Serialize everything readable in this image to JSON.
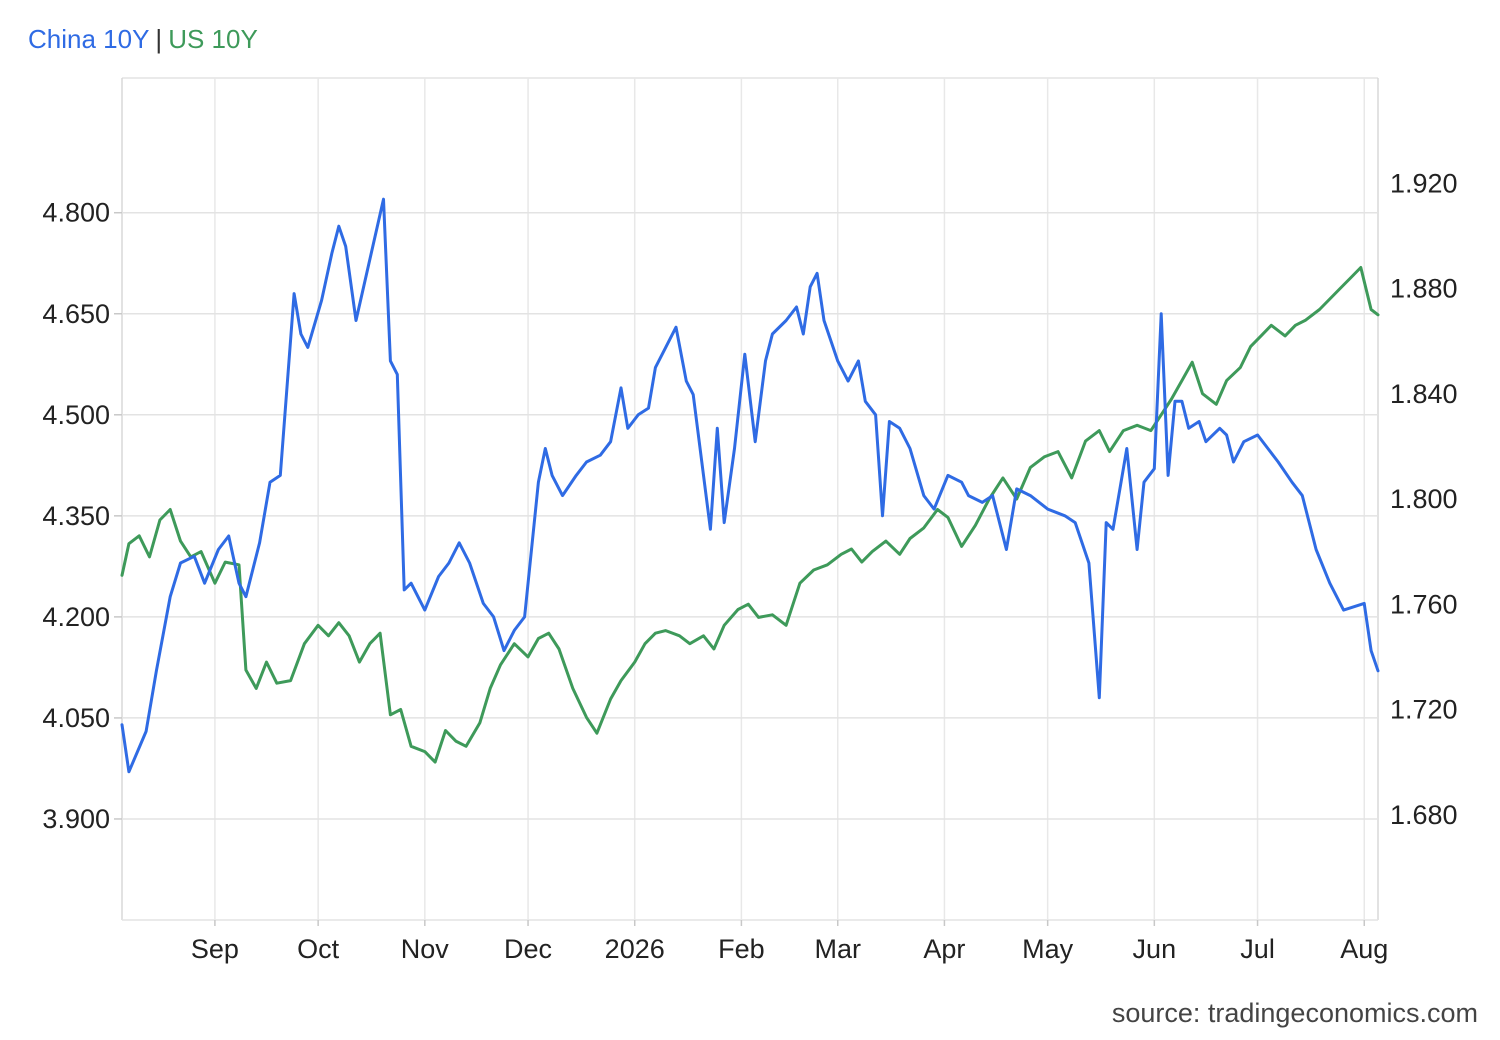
{
  "chart_data": {
    "type": "line",
    "legend": {
      "separator": "|",
      "placement": "top-left"
    },
    "source": "source: tradingeconomics.com",
    "grid": true,
    "x_ticks": [
      "Sep",
      "Oct",
      "Nov",
      "Dec",
      "2026",
      "Feb",
      "Mar",
      "Apr",
      "May",
      "Jun",
      "Jul",
      "Aug"
    ],
    "x_tick_dates": [
      "2025-09-01",
      "2025-10-01",
      "2025-11-01",
      "2025-12-01",
      "2026-01-01",
      "2026-02-01",
      "2026-03-01",
      "2026-04-01",
      "2026-05-01",
      "2026-06-01",
      "2026-07-01",
      "2026-08-01"
    ],
    "xlim": [
      "2025-08-05",
      "2026-08-05"
    ],
    "y_left": {
      "ticks": [
        "4.800",
        "4.650",
        "4.500",
        "4.350",
        "4.200",
        "4.050",
        "3.900"
      ],
      "ylim": [
        3.75,
        5.0
      ]
    },
    "y_right": {
      "ticks": [
        "1.920",
        "1.880",
        "1.840",
        "1.800",
        "1.760",
        "1.720",
        "1.680"
      ],
      "ylim": [
        1.64,
        1.96
      ]
    },
    "series": [
      {
        "name": "China 10Y",
        "color": "#2f6be4",
        "axis": "left",
        "points": [
          [
            "2025-08-05",
            4.04
          ],
          [
            "2025-08-07",
            3.97
          ],
          [
            "2025-08-12",
            4.03
          ],
          [
            "2025-08-15",
            4.12
          ],
          [
            "2025-08-19",
            4.23
          ],
          [
            "2025-08-22",
            4.28
          ],
          [
            "2025-08-26",
            4.29
          ],
          [
            "2025-08-29",
            4.25
          ],
          [
            "2025-09-02",
            4.3
          ],
          [
            "2025-09-05",
            4.32
          ],
          [
            "2025-09-08",
            4.25
          ],
          [
            "2025-09-10",
            4.23
          ],
          [
            "2025-09-14",
            4.31
          ],
          [
            "2025-09-17",
            4.4
          ],
          [
            "2025-09-20",
            4.41
          ],
          [
            "2025-09-24",
            4.68
          ],
          [
            "2025-09-26",
            4.62
          ],
          [
            "2025-09-28",
            4.6
          ],
          [
            "2025-10-02",
            4.67
          ],
          [
            "2025-10-05",
            4.74
          ],
          [
            "2025-10-07",
            4.78
          ],
          [
            "2025-10-09",
            4.75
          ],
          [
            "2025-10-12",
            4.64
          ],
          [
            "2025-10-20",
            4.82
          ],
          [
            "2025-10-22",
            4.58
          ],
          [
            "2025-10-24",
            4.56
          ],
          [
            "2025-10-26",
            4.24
          ],
          [
            "2025-10-28",
            4.25
          ],
          [
            "2025-11-01",
            4.21
          ],
          [
            "2025-11-05",
            4.26
          ],
          [
            "2025-11-08",
            4.28
          ],
          [
            "2025-11-11",
            4.31
          ],
          [
            "2025-11-14",
            4.28
          ],
          [
            "2025-11-18",
            4.22
          ],
          [
            "2025-11-21",
            4.2
          ],
          [
            "2025-11-24",
            4.15
          ],
          [
            "2025-11-27",
            4.18
          ],
          [
            "2025-11-30",
            4.2
          ],
          [
            "2025-12-04",
            4.4
          ],
          [
            "2025-12-06",
            4.45
          ],
          [
            "2025-12-08",
            4.41
          ],
          [
            "2025-12-11",
            4.38
          ],
          [
            "2025-12-15",
            4.41
          ],
          [
            "2025-12-18",
            4.43
          ],
          [
            "2025-12-22",
            4.44
          ],
          [
            "2025-12-25",
            4.46
          ],
          [
            "2025-12-28",
            4.54
          ],
          [
            "2025-12-30",
            4.48
          ],
          [
            "2026-01-02",
            4.5
          ],
          [
            "2026-01-05",
            4.51
          ],
          [
            "2026-01-07",
            4.57
          ],
          [
            "2026-01-10",
            4.6
          ],
          [
            "2026-01-13",
            4.63
          ],
          [
            "2026-01-16",
            4.55
          ],
          [
            "2026-01-18",
            4.53
          ],
          [
            "2026-01-23",
            4.33
          ],
          [
            "2026-01-25",
            4.48
          ],
          [
            "2026-01-27",
            4.34
          ],
          [
            "2026-01-30",
            4.45
          ],
          [
            "2026-02-02",
            4.59
          ],
          [
            "2026-02-05",
            4.46
          ],
          [
            "2026-02-08",
            4.58
          ],
          [
            "2026-02-10",
            4.62
          ],
          [
            "2026-02-14",
            4.64
          ],
          [
            "2026-02-17",
            4.66
          ],
          [
            "2026-02-19",
            4.62
          ],
          [
            "2026-02-21",
            4.69
          ],
          [
            "2026-02-23",
            4.71
          ],
          [
            "2026-02-25",
            4.64
          ],
          [
            "2026-03-01",
            4.58
          ],
          [
            "2026-03-04",
            4.55
          ],
          [
            "2026-03-07",
            4.58
          ],
          [
            "2026-03-09",
            4.52
          ],
          [
            "2026-03-12",
            4.5
          ],
          [
            "2026-03-14",
            4.35
          ],
          [
            "2026-03-16",
            4.49
          ],
          [
            "2026-03-19",
            4.48
          ],
          [
            "2026-03-22",
            4.45
          ],
          [
            "2026-03-26",
            4.38
          ],
          [
            "2026-03-29",
            4.36
          ],
          [
            "2026-04-02",
            4.41
          ],
          [
            "2026-04-06",
            4.4
          ],
          [
            "2026-04-08",
            4.38
          ],
          [
            "2026-04-12",
            4.37
          ],
          [
            "2026-04-15",
            4.38
          ],
          [
            "2026-04-19",
            4.3
          ],
          [
            "2026-04-22",
            4.39
          ],
          [
            "2026-04-26",
            4.38
          ],
          [
            "2026-05-01",
            4.36
          ],
          [
            "2026-05-06",
            4.35
          ],
          [
            "2026-05-09",
            4.34
          ],
          [
            "2026-05-13",
            4.28
          ],
          [
            "2026-05-16",
            4.08
          ],
          [
            "2026-05-18",
            4.34
          ],
          [
            "2026-05-20",
            4.33
          ],
          [
            "2026-05-24",
            4.45
          ],
          [
            "2026-05-27",
            4.3
          ],
          [
            "2026-05-29",
            4.4
          ],
          [
            "2026-06-01",
            4.42
          ],
          [
            "2026-06-03",
            4.65
          ],
          [
            "2026-06-05",
            4.41
          ],
          [
            "2026-06-07",
            4.52
          ],
          [
            "2026-06-09",
            4.52
          ],
          [
            "2026-06-11",
            4.48
          ],
          [
            "2026-06-14",
            4.49
          ],
          [
            "2026-06-16",
            4.46
          ],
          [
            "2026-06-20",
            4.48
          ],
          [
            "2026-06-22",
            4.47
          ],
          [
            "2026-06-24",
            4.43
          ],
          [
            "2026-06-27",
            4.46
          ],
          [
            "2026-07-01",
            4.47
          ],
          [
            "2026-07-04",
            4.45
          ],
          [
            "2026-07-07",
            4.43
          ],
          [
            "2026-07-11",
            4.4
          ],
          [
            "2026-07-14",
            4.38
          ],
          [
            "2026-07-18",
            4.3
          ],
          [
            "2026-07-22",
            4.25
          ],
          [
            "2026-07-26",
            4.21
          ],
          [
            "2026-08-01",
            4.22
          ],
          [
            "2026-08-03",
            4.15
          ],
          [
            "2026-08-05",
            4.12
          ]
        ]
      },
      {
        "name": "US 10Y",
        "color": "#3e9a5a",
        "axis": "right",
        "points": [
          [
            "2025-08-05",
            1.771
          ],
          [
            "2025-08-07",
            1.783
          ],
          [
            "2025-08-10",
            1.786
          ],
          [
            "2025-08-13",
            1.778
          ],
          [
            "2025-08-16",
            1.792
          ],
          [
            "2025-08-19",
            1.796
          ],
          [
            "2025-08-22",
            1.784
          ],
          [
            "2025-08-25",
            1.778
          ],
          [
            "2025-08-28",
            1.78
          ],
          [
            "2025-09-01",
            1.768
          ],
          [
            "2025-09-04",
            1.776
          ],
          [
            "2025-09-08",
            1.775
          ],
          [
            "2025-09-10",
            1.735
          ],
          [
            "2025-09-13",
            1.728
          ],
          [
            "2025-09-16",
            1.738
          ],
          [
            "2025-09-19",
            1.73
          ],
          [
            "2025-09-23",
            1.731
          ],
          [
            "2025-09-27",
            1.745
          ],
          [
            "2025-10-01",
            1.752
          ],
          [
            "2025-10-04",
            1.748
          ],
          [
            "2025-10-07",
            1.753
          ],
          [
            "2025-10-10",
            1.748
          ],
          [
            "2025-10-13",
            1.738
          ],
          [
            "2025-10-16",
            1.745
          ],
          [
            "2025-10-19",
            1.749
          ],
          [
            "2025-10-22",
            1.718
          ],
          [
            "2025-10-25",
            1.72
          ],
          [
            "2025-10-28",
            1.706
          ],
          [
            "2025-11-01",
            1.704
          ],
          [
            "2025-11-04",
            1.7
          ],
          [
            "2025-11-07",
            1.712
          ],
          [
            "2025-11-10",
            1.708
          ],
          [
            "2025-11-13",
            1.706
          ],
          [
            "2025-11-17",
            1.715
          ],
          [
            "2025-11-20",
            1.728
          ],
          [
            "2025-11-23",
            1.737
          ],
          [
            "2025-11-27",
            1.745
          ],
          [
            "2025-12-01",
            1.74
          ],
          [
            "2025-12-04",
            1.747
          ],
          [
            "2025-12-07",
            1.749
          ],
          [
            "2025-12-10",
            1.743
          ],
          [
            "2025-12-14",
            1.728
          ],
          [
            "2025-12-18",
            1.717
          ],
          [
            "2025-12-21",
            1.711
          ],
          [
            "2025-12-25",
            1.724
          ],
          [
            "2025-12-28",
            1.731
          ],
          [
            "2026-01-01",
            1.738
          ],
          [
            "2026-01-04",
            1.745
          ],
          [
            "2026-01-07",
            1.749
          ],
          [
            "2026-01-10",
            1.75
          ],
          [
            "2026-01-14",
            1.748
          ],
          [
            "2026-01-17",
            1.745
          ],
          [
            "2026-01-21",
            1.748
          ],
          [
            "2026-01-24",
            1.743
          ],
          [
            "2026-01-27",
            1.752
          ],
          [
            "2026-01-31",
            1.758
          ],
          [
            "2026-02-03",
            1.76
          ],
          [
            "2026-02-06",
            1.755
          ],
          [
            "2026-02-10",
            1.756
          ],
          [
            "2026-02-14",
            1.752
          ],
          [
            "2026-02-18",
            1.768
          ],
          [
            "2026-02-22",
            1.773
          ],
          [
            "2026-02-26",
            1.775
          ],
          [
            "2026-03-02",
            1.779
          ],
          [
            "2026-03-05",
            1.781
          ],
          [
            "2026-03-08",
            1.776
          ],
          [
            "2026-03-11",
            1.78
          ],
          [
            "2026-03-15",
            1.784
          ],
          [
            "2026-03-19",
            1.779
          ],
          [
            "2026-03-22",
            1.785
          ],
          [
            "2026-03-26",
            1.789
          ],
          [
            "2026-03-30",
            1.796
          ],
          [
            "2026-04-02",
            1.793
          ],
          [
            "2026-04-06",
            1.782
          ],
          [
            "2026-04-10",
            1.79
          ],
          [
            "2026-04-14",
            1.8
          ],
          [
            "2026-04-18",
            1.808
          ],
          [
            "2026-04-22",
            1.8
          ],
          [
            "2026-04-26",
            1.812
          ],
          [
            "2026-04-30",
            1.816
          ],
          [
            "2026-05-04",
            1.818
          ],
          [
            "2026-05-08",
            1.808
          ],
          [
            "2026-05-12",
            1.822
          ],
          [
            "2026-05-16",
            1.826
          ],
          [
            "2026-05-19",
            1.818
          ],
          [
            "2026-05-23",
            1.826
          ],
          [
            "2026-05-27",
            1.828
          ],
          [
            "2026-05-31",
            1.826
          ],
          [
            "2026-06-03",
            1.832
          ],
          [
            "2026-06-06",
            1.838
          ],
          [
            "2026-06-09",
            1.845
          ],
          [
            "2026-06-12",
            1.852
          ],
          [
            "2026-06-15",
            1.84
          ],
          [
            "2026-06-19",
            1.836
          ],
          [
            "2026-06-22",
            1.845
          ],
          [
            "2026-06-26",
            1.85
          ],
          [
            "2026-06-29",
            1.858
          ],
          [
            "2026-07-02",
            1.862
          ],
          [
            "2026-07-05",
            1.866
          ],
          [
            "2026-07-09",
            1.862
          ],
          [
            "2026-07-12",
            1.866
          ],
          [
            "2026-07-15",
            1.868
          ],
          [
            "2026-07-19",
            1.872
          ],
          [
            "2026-07-22",
            1.876
          ],
          [
            "2026-07-25",
            1.88
          ],
          [
            "2026-07-28",
            1.884
          ],
          [
            "2026-07-31",
            1.888
          ],
          [
            "2026-08-03",
            1.872
          ],
          [
            "2026-08-05",
            1.87
          ]
        ]
      }
    ]
  }
}
